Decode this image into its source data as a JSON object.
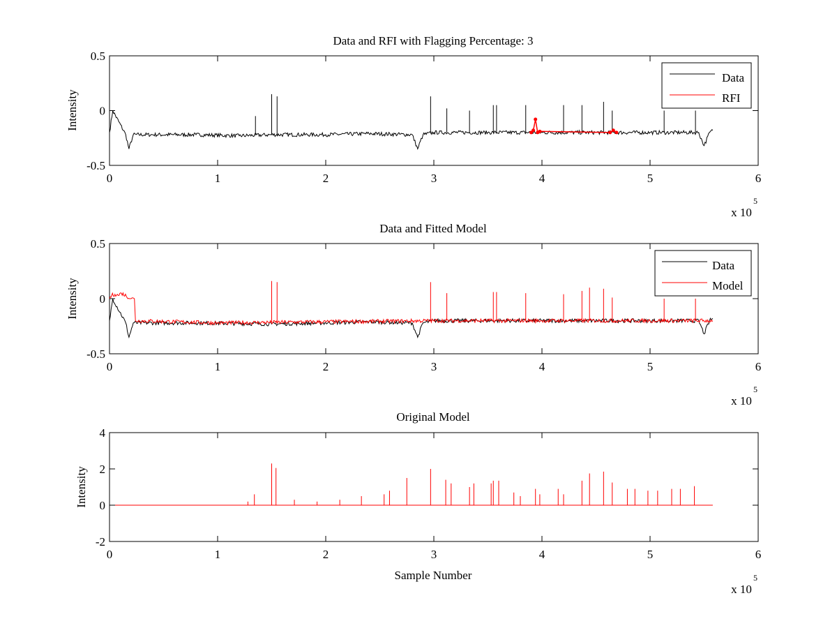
{
  "chart_data": [
    {
      "type": "line",
      "title": "Data and RFI with Flagging Percentage: 3",
      "xlabel": "",
      "ylabel": "Intensity",
      "xlim": [
        0,
        600000
      ],
      "ylim": [
        -0.5,
        0.5
      ],
      "xticks": [
        0,
        100000,
        200000,
        300000,
        400000,
        500000,
        600000
      ],
      "xtick_labels": [
        "0",
        "1",
        "2",
        "3",
        "4",
        "5",
        "6"
      ],
      "yticks": [
        -0.5,
        0,
        0.5
      ],
      "ytick_labels": [
        "-0.5",
        "0",
        "0.5"
      ],
      "x_multiplier_label": "x 10",
      "x_multiplier_exponent": "5",
      "legend": {
        "position": "top-right",
        "entries": [
          "Data",
          "RFI"
        ]
      },
      "series": [
        {
          "name": "Data",
          "color": "#000000",
          "x": [
            0,
            3000,
            15000,
            18000,
            22000,
            40000,
            80000,
            120000,
            150000,
            200000,
            240000,
            280000,
            285000,
            290000,
            300000,
            350000,
            400000,
            450000,
            500000,
            545000,
            550000,
            555000,
            558000
          ],
          "y": [
            -0.2,
            0.0,
            -0.22,
            -0.35,
            -0.22,
            -0.22,
            -0.22,
            -0.23,
            -0.22,
            -0.22,
            -0.21,
            -0.22,
            -0.35,
            -0.22,
            -0.2,
            -0.2,
            -0.2,
            -0.2,
            -0.2,
            -0.2,
            -0.32,
            -0.2,
            -0.18
          ],
          "spikes": [
            {
              "x": 150000,
              "y": 0.15
            },
            {
              "x": 155000,
              "y": 0.13
            },
            {
              "x": 135000,
              "y": -0.05
            },
            {
              "x": 297000,
              "y": 0.13
            },
            {
              "x": 312000,
              "y": 0.02
            },
            {
              "x": 333000,
              "y": 0.0
            },
            {
              "x": 355000,
              "y": 0.05
            },
            {
              "x": 358000,
              "y": 0.05
            },
            {
              "x": 385000,
              "y": 0.05
            },
            {
              "x": 420000,
              "y": 0.05
            },
            {
              "x": 437000,
              "y": 0.05
            },
            {
              "x": 457000,
              "y": 0.08
            },
            {
              "x": 465000,
              "y": 0.0
            },
            {
              "x": 513000,
              "y": 0.0
            },
            {
              "x": 542000,
              "y": 0.0
            }
          ]
        },
        {
          "name": "RFI",
          "color": "#ff0000",
          "x": [
            390000,
            392000,
            394000,
            396000,
            398000,
            463000,
            466000,
            469000
          ],
          "y": [
            -0.2,
            -0.18,
            -0.08,
            -0.2,
            -0.19,
            -0.2,
            -0.18,
            -0.2
          ]
        }
      ]
    },
    {
      "type": "line",
      "title": "Data and Fitted Model",
      "xlabel": "",
      "ylabel": "Intensity",
      "xlim": [
        0,
        600000
      ],
      "ylim": [
        -0.5,
        0.5
      ],
      "xticks": [
        0,
        100000,
        200000,
        300000,
        400000,
        500000,
        600000
      ],
      "xtick_labels": [
        "0",
        "1",
        "2",
        "3",
        "4",
        "5",
        "6"
      ],
      "yticks": [
        -0.5,
        0,
        0.5
      ],
      "ytick_labels": [
        "-0.5",
        "0",
        "0.5"
      ],
      "x_multiplier_label": "x 10",
      "x_multiplier_exponent": "5",
      "legend": {
        "position": "top-right",
        "entries": [
          "Data",
          "Model"
        ]
      },
      "series": [
        {
          "name": "Data",
          "color": "#000000",
          "x": [
            0,
            3000,
            15000,
            18000,
            22000,
            80000,
            150000,
            200000,
            240000,
            280000,
            285000,
            290000,
            300000,
            400000,
            500000,
            545000,
            550000,
            555000,
            558000
          ],
          "y": [
            -0.2,
            0.0,
            -0.22,
            -0.35,
            -0.22,
            -0.22,
            -0.23,
            -0.22,
            -0.21,
            -0.22,
            -0.35,
            -0.22,
            -0.2,
            -0.2,
            -0.2,
            -0.2,
            -0.32,
            -0.2,
            -0.18
          ]
        },
        {
          "name": "Model",
          "color": "#ff0000",
          "x": [
            0,
            2000,
            5000,
            8000,
            11000,
            20000,
            23000,
            24000,
            100000,
            200000,
            300000,
            400000,
            500000,
            558000
          ],
          "y": [
            0.0,
            0.03,
            0.04,
            0.03,
            0.05,
            0.0,
            0.0,
            -0.2,
            -0.22,
            -0.21,
            -0.2,
            -0.2,
            -0.2,
            -0.2
          ],
          "spikes": [
            {
              "x": 150000,
              "y": 0.16
            },
            {
              "x": 155000,
              "y": 0.15
            },
            {
              "x": 297000,
              "y": 0.15
            },
            {
              "x": 312000,
              "y": 0.05
            },
            {
              "x": 355000,
              "y": 0.06
            },
            {
              "x": 358000,
              "y": 0.06
            },
            {
              "x": 385000,
              "y": 0.05
            },
            {
              "x": 420000,
              "y": 0.04
            },
            {
              "x": 437000,
              "y": 0.07
            },
            {
              "x": 444000,
              "y": 0.1
            },
            {
              "x": 457000,
              "y": 0.09
            },
            {
              "x": 465000,
              "y": 0.01
            },
            {
              "x": 513000,
              "y": 0.0
            },
            {
              "x": 542000,
              "y": 0.0
            }
          ]
        }
      ]
    },
    {
      "type": "line",
      "title": "Original Model",
      "xlabel": "Sample Number",
      "ylabel": "Intensity",
      "xlim": [
        0,
        600000
      ],
      "ylim": [
        -2,
        4
      ],
      "xticks": [
        0,
        100000,
        200000,
        300000,
        400000,
        500000,
        600000
      ],
      "xtick_labels": [
        "0",
        "1",
        "2",
        "3",
        "4",
        "5",
        "6"
      ],
      "yticks": [
        -2,
        0,
        2,
        4
      ],
      "ytick_labels": [
        "-2",
        "0",
        "2",
        "4"
      ],
      "x_multiplier_label": "x 10",
      "x_multiplier_exponent": "5",
      "series": [
        {
          "name": "",
          "color": "#ff0000",
          "x": [
            2000,
            558000
          ],
          "y": [
            0,
            0
          ],
          "spikes": [
            {
              "x": 128000,
              "y": 0.2
            },
            {
              "x": 134000,
              "y": 0.6
            },
            {
              "x": 150000,
              "y": 2.3
            },
            {
              "x": 154000,
              "y": 2.05
            },
            {
              "x": 171000,
              "y": 0.3
            },
            {
              "x": 192000,
              "y": 0.2
            },
            {
              "x": 213000,
              "y": 0.3
            },
            {
              "x": 233000,
              "y": 0.5
            },
            {
              "x": 254000,
              "y": 0.6
            },
            {
              "x": 259000,
              "y": 0.8
            },
            {
              "x": 275000,
              "y": 1.5
            },
            {
              "x": 297000,
              "y": 2.0
            },
            {
              "x": 311000,
              "y": 1.4
            },
            {
              "x": 316000,
              "y": 1.2
            },
            {
              "x": 333000,
              "y": 1.0
            },
            {
              "x": 337000,
              "y": 1.2
            },
            {
              "x": 353000,
              "y": 1.2
            },
            {
              "x": 355000,
              "y": 1.35
            },
            {
              "x": 360000,
              "y": 1.35
            },
            {
              "x": 374000,
              "y": 0.7
            },
            {
              "x": 380000,
              "y": 0.5
            },
            {
              "x": 394000,
              "y": 0.9
            },
            {
              "x": 398000,
              "y": 0.6
            },
            {
              "x": 415000,
              "y": 0.9
            },
            {
              "x": 420000,
              "y": 0.6
            },
            {
              "x": 437000,
              "y": 1.35
            },
            {
              "x": 444000,
              "y": 1.75
            },
            {
              "x": 457000,
              "y": 1.85
            },
            {
              "x": 465000,
              "y": 1.25
            },
            {
              "x": 479000,
              "y": 0.9
            },
            {
              "x": 486000,
              "y": 0.9
            },
            {
              "x": 498000,
              "y": 0.8
            },
            {
              "x": 507000,
              "y": 0.8
            },
            {
              "x": 520000,
              "y": 0.9
            },
            {
              "x": 528000,
              "y": 0.9
            },
            {
              "x": 541000,
              "y": 1.05
            }
          ]
        }
      ]
    }
  ]
}
